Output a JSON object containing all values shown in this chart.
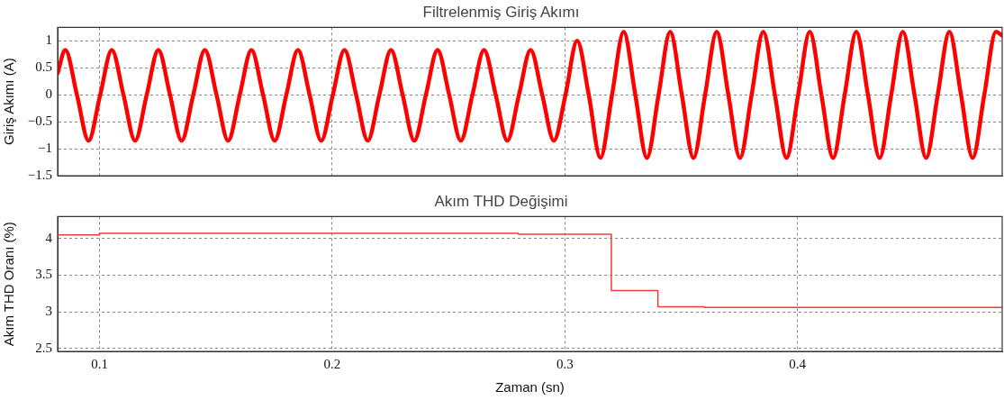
{
  "chart_data": [
    {
      "type": "line",
      "title": "Filtrelenmiş Giriş Akımı",
      "ylabel": "Giriş Akımı (A)",
      "color": "#ff0000",
      "marker": "none",
      "grid": true,
      "tick_labels": "y",
      "xlim": [
        0.082,
        0.488
      ],
      "ylim": [
        -1.5,
        1.25
      ],
      "xticks": [
        0.1,
        0.2,
        0.3,
        0.4
      ],
      "yticks": [
        {
          "value": -1.5,
          "label": "−1.5"
        },
        {
          "value": -1,
          "label": "−1"
        },
        {
          "value": -0.5,
          "label": "−0.5"
        },
        0,
        0.5,
        1
      ],
      "x": [
        0.082,
        0.0853,
        0.0903,
        0.0953,
        0.1003,
        0.1053,
        0.1103,
        0.1153,
        0.1203,
        0.1253,
        0.1303,
        0.1353,
        0.1403,
        0.1453,
        0.1503,
        0.1553,
        0.1603,
        0.1653,
        0.1703,
        0.1753,
        0.1803,
        0.1853,
        0.1903,
        0.1953,
        0.2003,
        0.2053,
        0.2103,
        0.2153,
        0.2203,
        0.2253,
        0.2303,
        0.2353,
        0.2403,
        0.2453,
        0.2503,
        0.2553,
        0.2603,
        0.2653,
        0.2703,
        0.2753,
        0.2803,
        0.2853,
        0.2903,
        0.2953,
        0.3003,
        0.3053,
        0.3103,
        0.3153,
        0.3203,
        0.3253,
        0.3303,
        0.3353,
        0.3403,
        0.3453,
        0.3503,
        0.3553,
        0.3603,
        0.3653,
        0.3703,
        0.3753,
        0.3803,
        0.3853,
        0.3903,
        0.3953,
        0.4003,
        0.4053,
        0.4103,
        0.4153,
        0.4203,
        0.4253,
        0.4303,
        0.4353,
        0.4403,
        0.4453,
        0.4503,
        0.4553,
        0.4603,
        0.4653,
        0.4703,
        0.4753,
        0.4803,
        0.4853,
        0.488
      ],
      "values": [
        0.4,
        0.83,
        0,
        -0.85,
        0,
        0.83,
        0,
        -0.85,
        0,
        0.83,
        0,
        -0.85,
        0,
        0.83,
        0,
        -0.85,
        0,
        0.83,
        0,
        -0.85,
        0,
        0.83,
        0,
        -0.85,
        0,
        0.83,
        0,
        -0.85,
        0,
        0.83,
        0,
        -0.85,
        0,
        0.83,
        0,
        -0.85,
        0,
        0.83,
        0,
        -0.85,
        0,
        0.83,
        0,
        -0.85,
        0,
        1.0,
        0,
        -1.17,
        0,
        1.17,
        0,
        -1.17,
        0,
        1.17,
        0,
        -1.17,
        0,
        1.17,
        0,
        -1.17,
        0,
        1.17,
        0,
        -1.17,
        0,
        1.17,
        0,
        -1.17,
        0,
        1.17,
        0,
        -1.17,
        0,
        1.17,
        0,
        -1.17,
        0,
        1.17,
        0,
        -1.17,
        0,
        1.17,
        1.1
      ]
    },
    {
      "type": "step",
      "title": "Akım THD Değişimi",
      "xlabel": "Zaman (sn)",
      "ylabel": "Akım THD Oranı (%)",
      "color": "#f03c3c",
      "marker": "none",
      "grid": true,
      "xlim": [
        0.082,
        0.488
      ],
      "ylim": [
        2.46,
        4.3
      ],
      "xticks": [
        0.1,
        0.2,
        0.3,
        0.4
      ],
      "yticks": [
        2.5,
        3,
        3.5,
        4
      ],
      "x": [
        0.082,
        0.1,
        0.28,
        0.32,
        0.34,
        0.36,
        0.488
      ],
      "values": [
        4.05,
        4.07,
        4.06,
        3.29,
        3.07,
        3.06,
        3.06
      ]
    }
  ]
}
